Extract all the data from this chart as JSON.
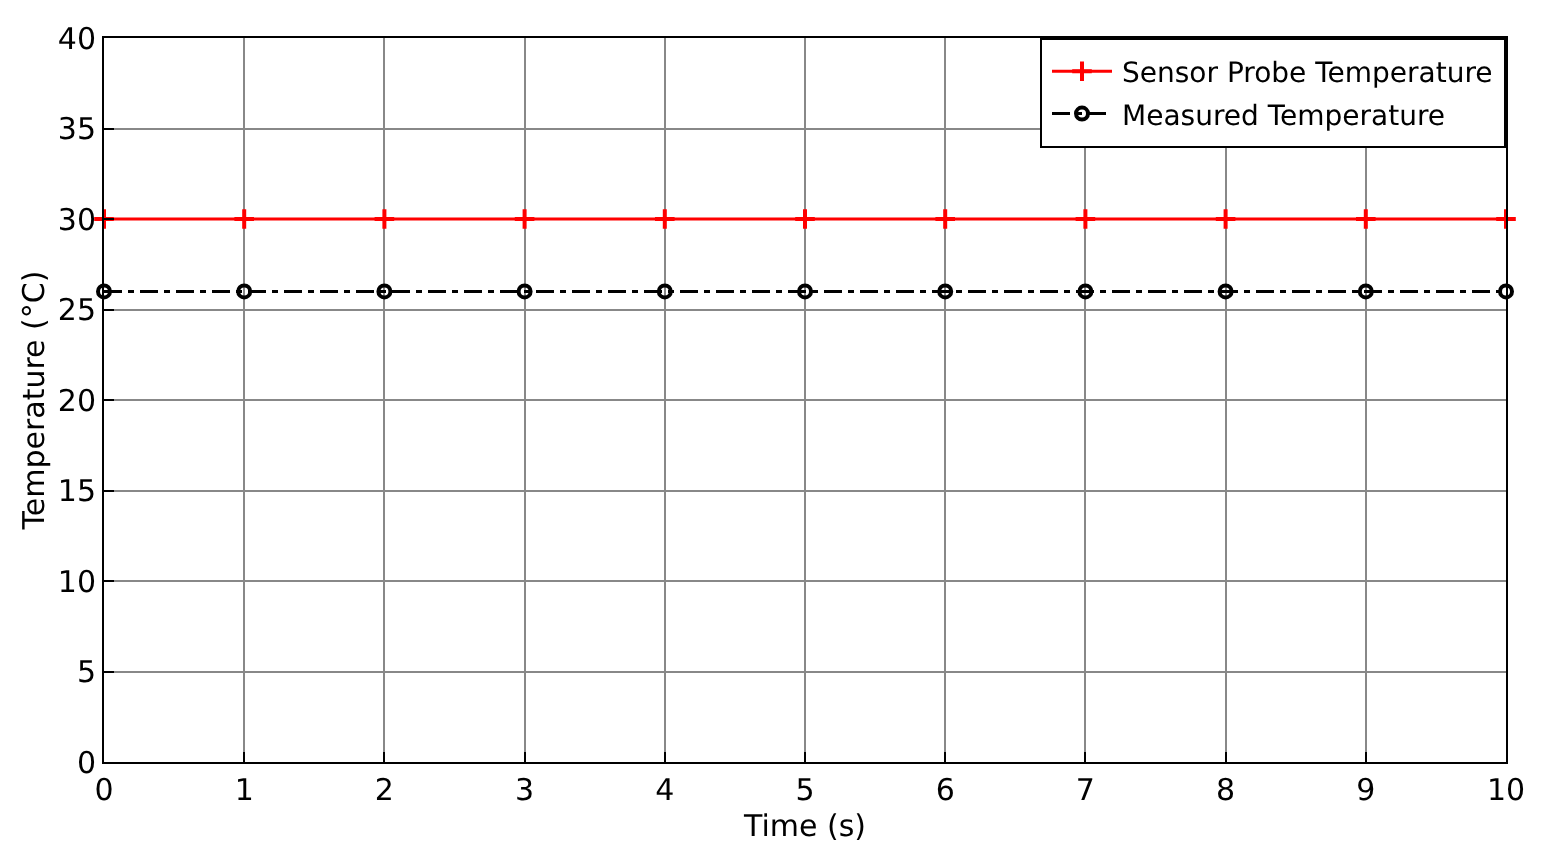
{
  "chart_data": {
    "type": "line",
    "xlabel": "Time (s)",
    "ylabel": "Temperature (°C)",
    "x": [
      0,
      1,
      2,
      3,
      4,
      5,
      6,
      7,
      8,
      9,
      10
    ],
    "series": [
      {
        "name": "Sensor Probe Temperature",
        "color": "#ff0000",
        "values": [
          30,
          30,
          30,
          30,
          30,
          30,
          30,
          30,
          30,
          30,
          30
        ],
        "marker": "cross",
        "line_style": "solid"
      },
      {
        "name": "Measured Temperature",
        "color": "#000000",
        "values": [
          26,
          26,
          26,
          26,
          26,
          26,
          26,
          26,
          26,
          26,
          26
        ],
        "marker": "circle",
        "line_style": "dashdot"
      }
    ],
    "xlim": [
      0,
      10
    ],
    "xticks": [
      0,
      1,
      2,
      3,
      4,
      5,
      6,
      7,
      8,
      9,
      10
    ],
    "ylim": [
      0,
      40
    ],
    "yticks": [
      0,
      5,
      10,
      15,
      20,
      25,
      30,
      35,
      40
    ],
    "grid": true,
    "legend": "top right"
  }
}
